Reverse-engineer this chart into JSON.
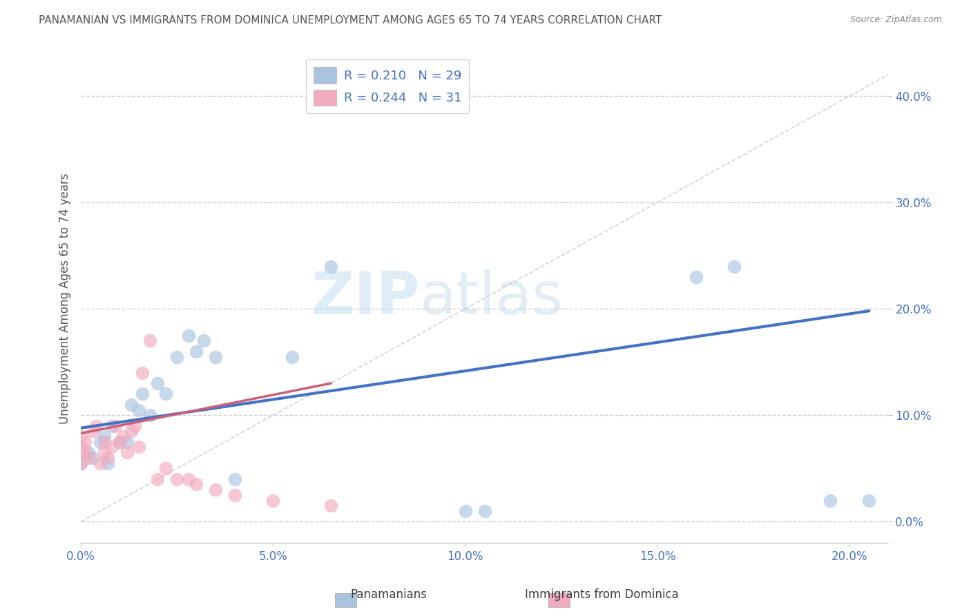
{
  "title": "PANAMANIAN VS IMMIGRANTS FROM DOMINICA UNEMPLOYMENT AMONG AGES 65 TO 74 YEARS CORRELATION CHART",
  "source": "Source: ZipAtlas.com",
  "ylabel": "Unemployment Among Ages 65 to 74 years",
  "xlim": [
    0.0,
    0.21
  ],
  "ylim": [
    -0.02,
    0.44
  ],
  "x_ticks": [
    0.0,
    0.05,
    0.1,
    0.15,
    0.2
  ],
  "x_tick_labels": [
    "0.0%",
    "5.0%",
    "10.0%",
    "15.0%",
    "20.0%"
  ],
  "y_ticks": [
    0.0,
    0.1,
    0.2,
    0.3,
    0.4
  ],
  "y_tick_labels": [
    "0.0%",
    "10.0%",
    "20.0%",
    "30.0%",
    "40.0%"
  ],
  "legend_R_blue": "0.210",
  "legend_N_blue": "29",
  "legend_R_pink": "0.244",
  "legend_N_pink": "31",
  "blue_scatter_x": [
    0.0,
    0.002,
    0.003,
    0.005,
    0.006,
    0.007,
    0.008,
    0.01,
    0.012,
    0.013,
    0.015,
    0.016,
    0.018,
    0.02,
    0.022,
    0.025,
    0.028,
    0.03,
    0.032,
    0.035,
    0.04,
    0.055,
    0.065,
    0.1,
    0.105,
    0.16,
    0.17,
    0.195,
    0.205
  ],
  "blue_scatter_y": [
    0.055,
    0.065,
    0.06,
    0.075,
    0.08,
    0.055,
    0.09,
    0.075,
    0.075,
    0.11,
    0.105,
    0.12,
    0.1,
    0.13,
    0.12,
    0.155,
    0.175,
    0.16,
    0.17,
    0.155,
    0.04,
    0.155,
    0.24,
    0.01,
    0.01,
    0.23,
    0.24,
    0.02,
    0.02
  ],
  "pink_scatter_x": [
    0.0,
    0.0,
    0.0,
    0.001,
    0.001,
    0.002,
    0.003,
    0.004,
    0.005,
    0.006,
    0.006,
    0.007,
    0.008,
    0.009,
    0.01,
    0.011,
    0.012,
    0.013,
    0.014,
    0.015,
    0.016,
    0.018,
    0.02,
    0.022,
    0.025,
    0.028,
    0.03,
    0.035,
    0.04,
    0.05,
    0.065
  ],
  "pink_scatter_y": [
    0.055,
    0.07,
    0.08,
    0.065,
    0.075,
    0.06,
    0.085,
    0.09,
    0.055,
    0.065,
    0.075,
    0.06,
    0.07,
    0.09,
    0.075,
    0.08,
    0.065,
    0.085,
    0.09,
    0.07,
    0.14,
    0.17,
    0.04,
    0.05,
    0.04,
    0.04,
    0.035,
    0.03,
    0.025,
    0.02,
    0.015
  ],
  "blue_line_x": [
    0.0,
    0.205
  ],
  "blue_line_y": [
    0.088,
    0.198
  ],
  "pink_line_x": [
    0.0,
    0.065
  ],
  "pink_line_y": [
    0.083,
    0.13
  ],
  "diag_line_x": [
    0.0,
    0.21
  ],
  "diag_line_y": [
    0.0,
    0.42
  ],
  "blue_color": "#aac4df",
  "pink_color": "#f2abbe",
  "blue_line_color": "#4472c4",
  "pink_line_color": "#c9607a",
  "diag_color": "#c8c8c8",
  "watermark_zip": "ZIP",
  "watermark_atlas": "atlas",
  "background_color": "#ffffff",
  "title_color": "#555555",
  "axis_label_color": "#4472c4",
  "legend_color": "#4472c4"
}
